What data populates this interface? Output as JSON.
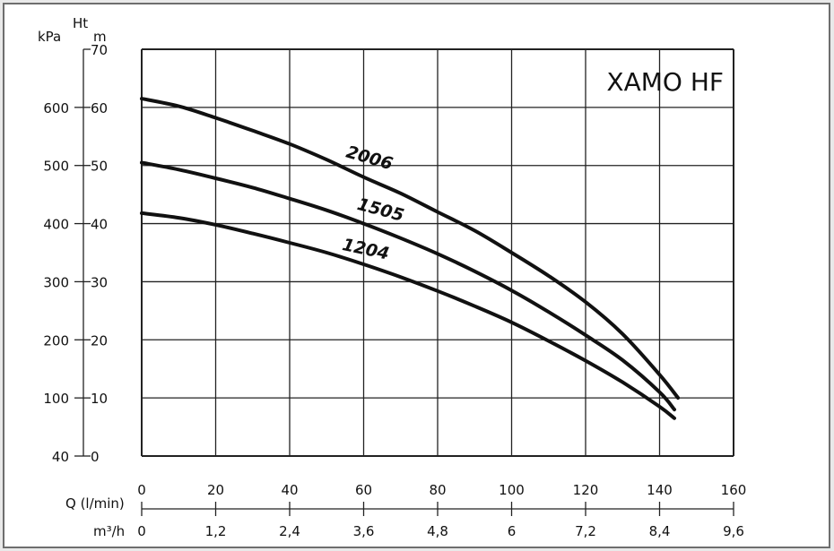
{
  "chart_data": {
    "type": "line",
    "title": "XAMO HF",
    "axis_labels": {
      "kpa": "kPa",
      "ht": "Ht",
      "m": "m",
      "q": "Q (l/min)",
      "m3h": "m³/h"
    },
    "x_range": [
      0,
      160
    ],
    "y_range": [
      0,
      70
    ],
    "grid": true,
    "x_ticks": [
      "0",
      "20",
      "40",
      "60",
      "80",
      "100",
      "120",
      "140",
      "160"
    ],
    "x_ticks_m3h": [
      "0",
      "1,2",
      "2,4",
      "3,6",
      "4,8",
      "6",
      "7,2",
      "8,4",
      "9,6"
    ],
    "y_ticks_m": [
      "0",
      "10",
      "20",
      "30",
      "40",
      "50",
      "60",
      "70"
    ],
    "y_ticks_kpa": [
      "40",
      "100",
      "200",
      "300",
      "400",
      "500",
      "600"
    ],
    "series": [
      {
        "name": "2006",
        "points": [
          [
            0,
            61.5
          ],
          [
            10,
            60.2
          ],
          [
            20,
            58.2
          ],
          [
            30,
            56
          ],
          [
            40,
            53.7
          ],
          [
            50,
            51
          ],
          [
            60,
            48
          ],
          [
            70,
            45.2
          ],
          [
            80,
            42
          ],
          [
            90,
            38.8
          ],
          [
            100,
            35
          ],
          [
            110,
            31
          ],
          [
            120,
            26.5
          ],
          [
            130,
            21
          ],
          [
            140,
            14
          ],
          [
            145,
            10
          ]
        ]
      },
      {
        "name": "1505",
        "points": [
          [
            0,
            50.5
          ],
          [
            10,
            49.3
          ],
          [
            20,
            47.8
          ],
          [
            30,
            46.2
          ],
          [
            40,
            44.3
          ],
          [
            50,
            42.3
          ],
          [
            60,
            40
          ],
          [
            70,
            37.5
          ],
          [
            80,
            34.8
          ],
          [
            90,
            31.8
          ],
          [
            100,
            28.5
          ],
          [
            110,
            24.8
          ],
          [
            120,
            20.8
          ],
          [
            130,
            16.5
          ],
          [
            140,
            11
          ],
          [
            144,
            8
          ]
        ]
      },
      {
        "name": "1204",
        "points": [
          [
            0,
            41.8
          ],
          [
            10,
            41
          ],
          [
            20,
            39.8
          ],
          [
            30,
            38.3
          ],
          [
            40,
            36.7
          ],
          [
            50,
            35
          ],
          [
            60,
            33
          ],
          [
            70,
            30.8
          ],
          [
            80,
            28.4
          ],
          [
            90,
            25.8
          ],
          [
            100,
            23
          ],
          [
            110,
            19.8
          ],
          [
            120,
            16.4
          ],
          [
            130,
            12.7
          ],
          [
            140,
            8.5
          ],
          [
            144,
            6.5
          ]
        ]
      }
    ],
    "curve_labels": [
      {
        "text": "2006",
        "x": 55,
        "y": 51.5,
        "angle": 16
      },
      {
        "text": "1505",
        "x": 58,
        "y": 42.5,
        "angle": 15
      },
      {
        "text": "1204",
        "x": 54,
        "y": 35.5,
        "angle": 12
      }
    ]
  }
}
